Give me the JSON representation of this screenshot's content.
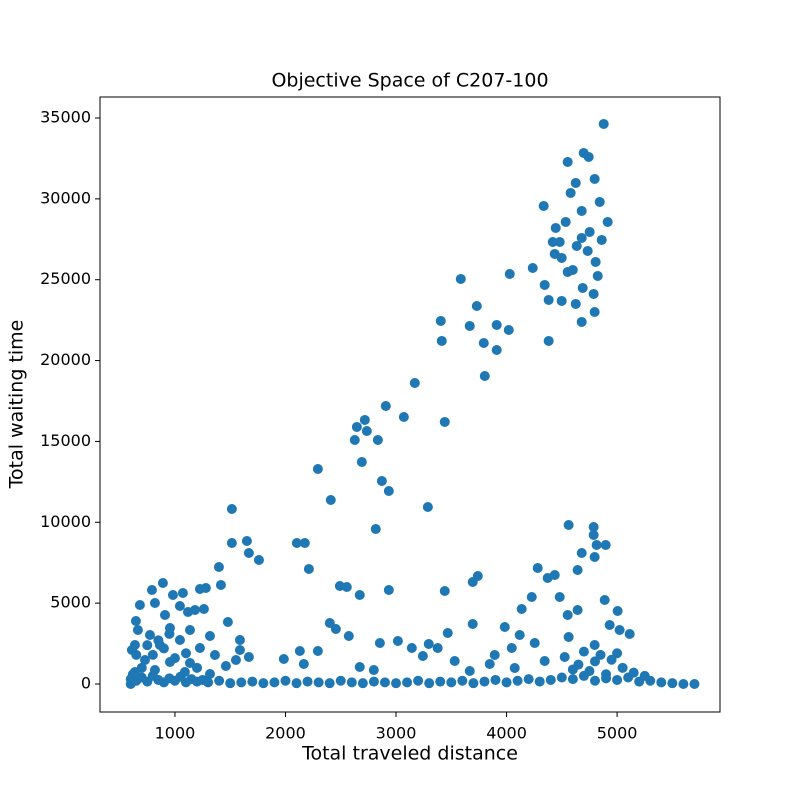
{
  "chart_data": {
    "type": "scatter",
    "title": "Objective Space of C207-100",
    "xlabel": "Total traveled distance",
    "ylabel": "Total waiting time",
    "color": "#1f77b4",
    "xlim": [
      322,
      5931
    ],
    "ylim": [
      -1732,
      36299
    ],
    "xticks": [
      1000,
      2000,
      3000,
      4000,
      5000
    ],
    "yticks": [
      0,
      5000,
      10000,
      15000,
      20000,
      25000,
      30000,
      35000
    ],
    "x": [
      4879,
      4698,
      4553,
      4743,
      4797,
      4626,
      4580,
      4336,
      4843,
      4680,
      4915,
      4535,
      4445,
      4481,
      4680,
      4752,
      4418,
      4861,
      4635,
      4734,
      4436,
      4499,
      4806,
      4599,
      4825,
      4553,
      3586,
      4029,
      4237,
      4345,
      4689,
      4788,
      4381,
      4499,
      4626,
      3731,
      4797,
      4680,
      3405,
      3667,
      3911,
      4020,
      3414,
      4381,
      3794,
      3911,
      3803,
      3170,
      3441,
      2718,
      2908,
      3071,
      2646,
      2736,
      2836,
      2627,
      2293,
      2691,
      2410,
      2872,
      2935,
      3288,
      2817,
      1515,
      1515,
      1651,
      2103,
      2175,
      1669,
      1760,
      2212,
      1398,
      3441,
      2935,
      2492,
      2555,
      2672,
      3694,
      3740,
      4282,
      4372,
      4436,
      4562,
      4788,
      4788,
      4897,
      4815,
      4797,
      4680,
      4643,
      4481,
      4228,
      4137,
      4643,
      4553,
      4933,
      5005,
      5023,
      5114,
      4888,
      4797,
      4562,
      4255,
      3984,
      4119,
      3468,
      3694,
      3296,
      3377,
      3017,
      2854,
      3143,
      3243,
      2401,
      2456,
      2573,
      2293,
      2130,
      1985,
      2166,
      3531,
      3667,
      3848,
      4047,
      4074,
      4345,
      4526,
      3893,
      2672,
      2799,
      891,
      792,
      683,
      982,
      1072,
      1226,
      1280,
      1416,
      1262,
      1181,
      1118,
      1045,
      910,
      819,
      647,
      665,
      1479,
      1588,
      1588,
      1552,
      1669,
      1461,
      1317,
      1136,
      955,
      774,
      638,
      611,
      864,
      1045,
      1226,
      1362,
      729,
      955,
      1136,
      819,
      638,
      1090,
      1317,
      600,
      600,
      620,
      650,
      700,
      750,
      800,
      850,
      900,
      950,
      1000,
      1050,
      1100,
      1150,
      1200,
      1250,
      1300,
      1400,
      1500,
      1600,
      1700,
      1800,
      1900,
      2000,
      2100,
      2200,
      2300,
      2400,
      2500,
      2600,
      2700,
      2800,
      2900,
      3000,
      3100,
      3200,
      3300,
      3400,
      3500,
      3600,
      3700,
      3800,
      3900,
      4000,
      4100,
      4200,
      4300,
      4400,
      4500,
      4600,
      4700,
      4800,
      4900,
      5000,
      5100,
      5200,
      5300,
      5400,
      5500,
      5600,
      5700,
      4650,
      4750,
      4850,
      4950,
      5050,
      5150,
      4700,
      4900,
      5000,
      5250,
      4600,
      4800,
      700,
      800,
      900,
      1000,
      1100,
      850,
      950,
      750,
      650,
      1200
    ],
    "values": [
      34632,
      32839,
      32282,
      32591,
      31231,
      30983,
      30365,
      29561,
      29808,
      29252,
      28571,
      28571,
      28200,
      27334,
      27582,
      27953,
      27334,
      27458,
      27087,
      26778,
      26592,
      26345,
      26098,
      25603,
      25232,
      25479,
      25046,
      25355,
      25726,
      24675,
      24490,
      24119,
      23748,
      23686,
      23500,
      23376,
      23005,
      22387,
      22449,
      22140,
      22202,
      21892,
      21212,
      21212,
      21088,
      20655,
      19047,
      18614,
      16203,
      16327,
      17192,
      16512,
      15894,
      15646,
      15089,
      15089,
      13296,
      13729,
      11379,
      12554,
      11936,
      10946,
      9586,
      10822,
      8720,
      8844,
      8720,
      8720,
      8101,
      7669,
      7112,
      7236,
      5751,
      5813,
      6060,
      5999,
      5504,
      6308,
      6679,
      7174,
      6555,
      6741,
      9833,
      9709,
      9215,
      8596,
      8596,
      7854,
      8101,
      7050,
      5380,
      5380,
      4638,
      4576,
      4267,
      3649,
      4514,
      3340,
      3092,
      5195,
      2412,
      2907,
      2536,
      3525,
      3030,
      3154,
      3711,
      2474,
      2226,
      2659,
      2536,
      2226,
      1732,
      3772,
      3401,
      2968,
      2041,
      2041,
      1546,
      1237,
      1422,
      804,
      1237,
      2226,
      989,
      1422,
      1670,
      1793,
      1051,
      866,
      6246,
      5813,
      4885,
      5504,
      5628,
      5875,
      5937,
      6122,
      4638,
      4576,
      4452,
      4824,
      4267,
      5009,
      3896,
      3340,
      3834,
      2721,
      2103,
      1484,
      1670,
      1113,
      2968,
      3340,
      3463,
      3030,
      2412,
      2103,
      2412,
      2721,
      2226,
      1793,
      1484,
      1361,
      1299,
      866,
      742,
      742,
      618,
      0,
      300,
      600,
      200,
      400,
      150,
      500,
      250,
      100,
      350,
      200,
      450,
      100,
      300,
      150,
      250,
      100,
      200,
      50,
      100,
      150,
      50,
      100,
      200,
      50,
      150,
      100,
      50,
      200,
      100,
      50,
      150,
      100,
      50,
      100,
      200,
      50,
      150,
      100,
      200,
      50,
      150,
      250,
      100,
      200,
      300,
      150,
      250,
      400,
      300,
      500,
      200,
      350,
      250,
      400,
      150,
      200,
      100,
      50,
      0,
      0,
      1200,
      800,
      1800,
      1500,
      1000,
      700,
      2000,
      600,
      1900,
      500,
      900,
      1400,
      1000,
      1800,
      2200,
      1600,
      1900,
      2700,
      3100,
      2400,
      1800,
      1000
    ]
  }
}
